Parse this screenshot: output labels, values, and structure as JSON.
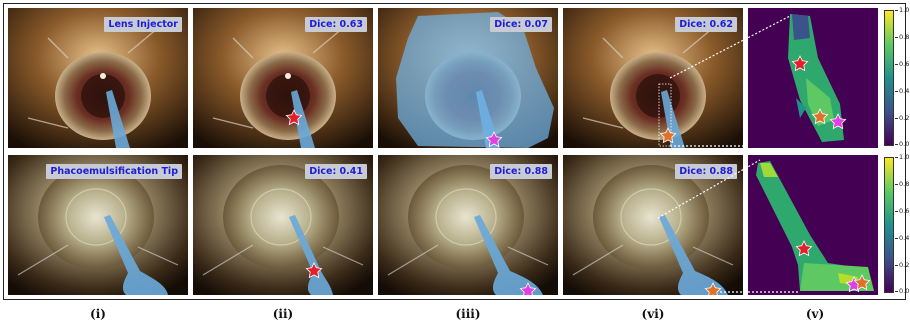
{
  "rows": [
    {
      "panels": [
        {
          "badge": "Lens Injector"
        },
        {
          "badge": "Dice: 0.63"
        },
        {
          "badge": "Dice: 0.07"
        },
        {
          "badge": "Dice: 0.62"
        }
      ]
    },
    {
      "panels": [
        {
          "badge": "Phacoemulsification Tip"
        },
        {
          "badge": "Dice: 0.41"
        },
        {
          "badge": "Dice: 0.88"
        },
        {
          "badge": "Dice: 0.88"
        }
      ]
    }
  ],
  "colorbar": {
    "ticks": [
      "1.0",
      "0.8",
      "0.6",
      "0.4",
      "0.2",
      "0.0"
    ],
    "colormap": [
      "#440154",
      "#3b528b",
      "#21918c",
      "#5ec962",
      "#fde725"
    ]
  },
  "column_labels": [
    "(i)",
    "(ii)",
    "(iii)",
    "(vi)",
    "(v)"
  ],
  "colors": {
    "star_red": "#e0202a",
    "star_magenta": "#e040e0",
    "star_orange": "#e0702a",
    "mask_blue": "#6fb3e8",
    "badge_text": "#1d1dd6"
  }
}
